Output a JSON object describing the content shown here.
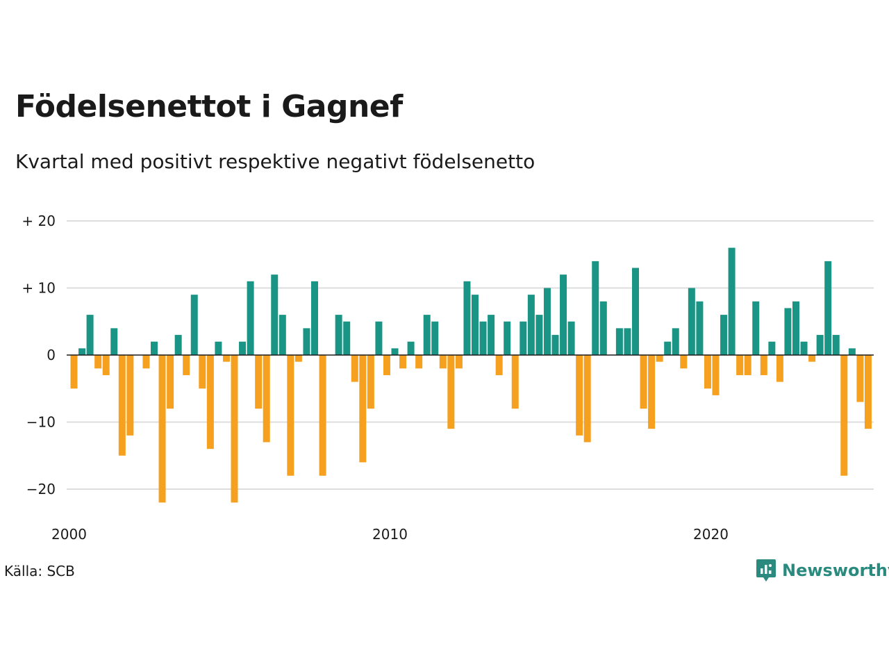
{
  "title": "Födelsenettot i Gagnef",
  "subtitle": "Kvartal med positivt respektive negativt födelsenetto",
  "source": "Källa: SCB",
  "brand": "Newsworthy",
  "colors": {
    "positive": "#1a9585",
    "negative": "#f5a01e",
    "grid": "#dddddd",
    "zero": "#1a1a1a",
    "text": "#1a1a1a",
    "brand": "#2a8a7e"
  },
  "chart_data": {
    "type": "bar",
    "ylim": [
      -22,
      20
    ],
    "y_ticks": [
      {
        "value": 20,
        "label": "+ 20"
      },
      {
        "value": 10,
        "label": "+ 10"
      },
      {
        "value": 0,
        "label": "0"
      },
      {
        "value": -10,
        "label": "−10"
      },
      {
        "value": -20,
        "label": "−20"
      }
    ],
    "x_ticks": [
      {
        "label": "2000",
        "index": 0
      },
      {
        "label": "2010",
        "index": 40
      },
      {
        "label": "2020",
        "index": 80
      }
    ],
    "start": "2000 Q1",
    "values": [
      -5,
      1,
      6,
      -2,
      -3,
      4,
      -15,
      -12,
      0,
      -2,
      2,
      -22,
      -8,
      3,
      -3,
      9,
      -5,
      -14,
      2,
      -1,
      -22,
      2,
      11,
      -8,
      -13,
      12,
      6,
      -18,
      -1,
      4,
      11,
      -18,
      0,
      6,
      5,
      -4,
      -16,
      -8,
      5,
      -3,
      1,
      -2,
      2,
      -2,
      6,
      5,
      -2,
      -11,
      -2,
      11,
      9,
      5,
      6,
      -3,
      5,
      -8,
      5,
      9,
      6,
      10,
      3,
      12,
      5,
      -12,
      -13,
      14,
      8,
      0,
      4,
      4,
      13,
      -8,
      -11,
      -1,
      2,
      4,
      -2,
      10,
      8,
      -5,
      -6,
      6,
      16,
      -3,
      -3,
      8,
      -3,
      2,
      -4,
      7,
      8,
      2,
      -1,
      3,
      14,
      3,
      -18,
      1,
      -7,
      -11
    ]
  }
}
